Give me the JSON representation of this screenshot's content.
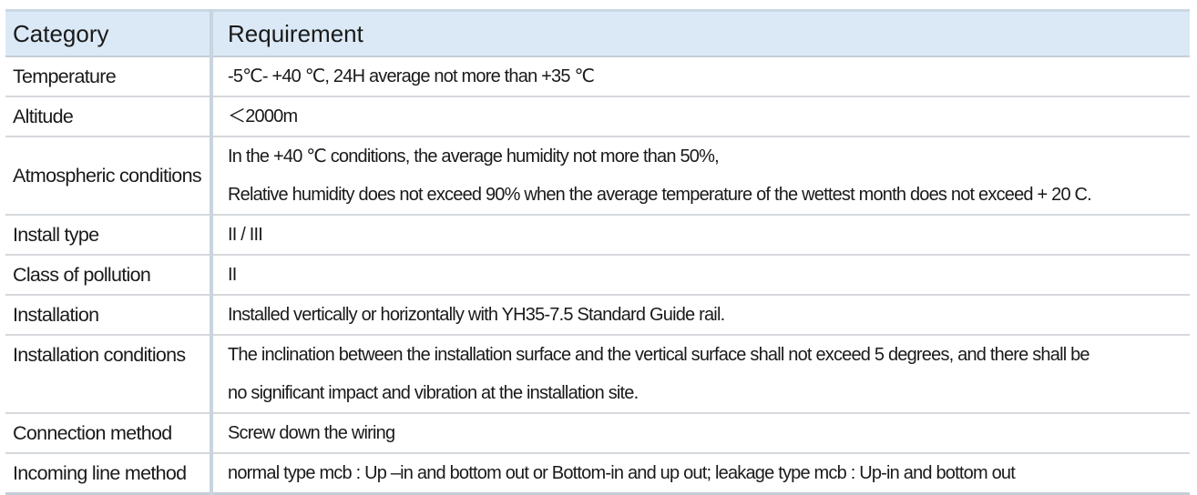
{
  "table": {
    "headers": {
      "category": "Category",
      "requirement": "Requirement"
    },
    "rows": [
      {
        "category": "Temperature",
        "requirement": [
          "-5℃- +40 ℃,  24H average not more than +35 ℃"
        ]
      },
      {
        "category": "Altitude",
        "requirement": [
          "＜2000m"
        ]
      },
      {
        "category": "Atmospheric conditions",
        "requirement": [
          "In the +40 ℃ conditions, the average humidity not more than 50%,",
          "Relative humidity does not exceed 90% when the average temperature of the wettest month does not exceed + 20 C."
        ]
      },
      {
        "category": "Install type",
        "requirement": [
          "II / III"
        ]
      },
      {
        "category": "Class of pollution",
        "requirement": [
          "II"
        ]
      },
      {
        "category": "Installation",
        "requirement": [
          "Installed vertically or horizontally with YH35-7.5 Standard Guide rail."
        ]
      },
      {
        "category": "Installation conditions",
        "requirement": [
          "The inclination between the installation surface and the vertical surface shall not exceed 5 degrees, and there shall be",
          "no significant impact and vibration at the installation site."
        ]
      },
      {
        "category": "Connection method",
        "requirement": [
          "Screw down the wiring"
        ]
      },
      {
        "category": "Incoming line method",
        "requirement": [
          "normal type mcb  : Up –in and bottom out    or  Bottom-in and up out;  leakage type mcb : Up-in and bottom out"
        ]
      }
    ]
  }
}
